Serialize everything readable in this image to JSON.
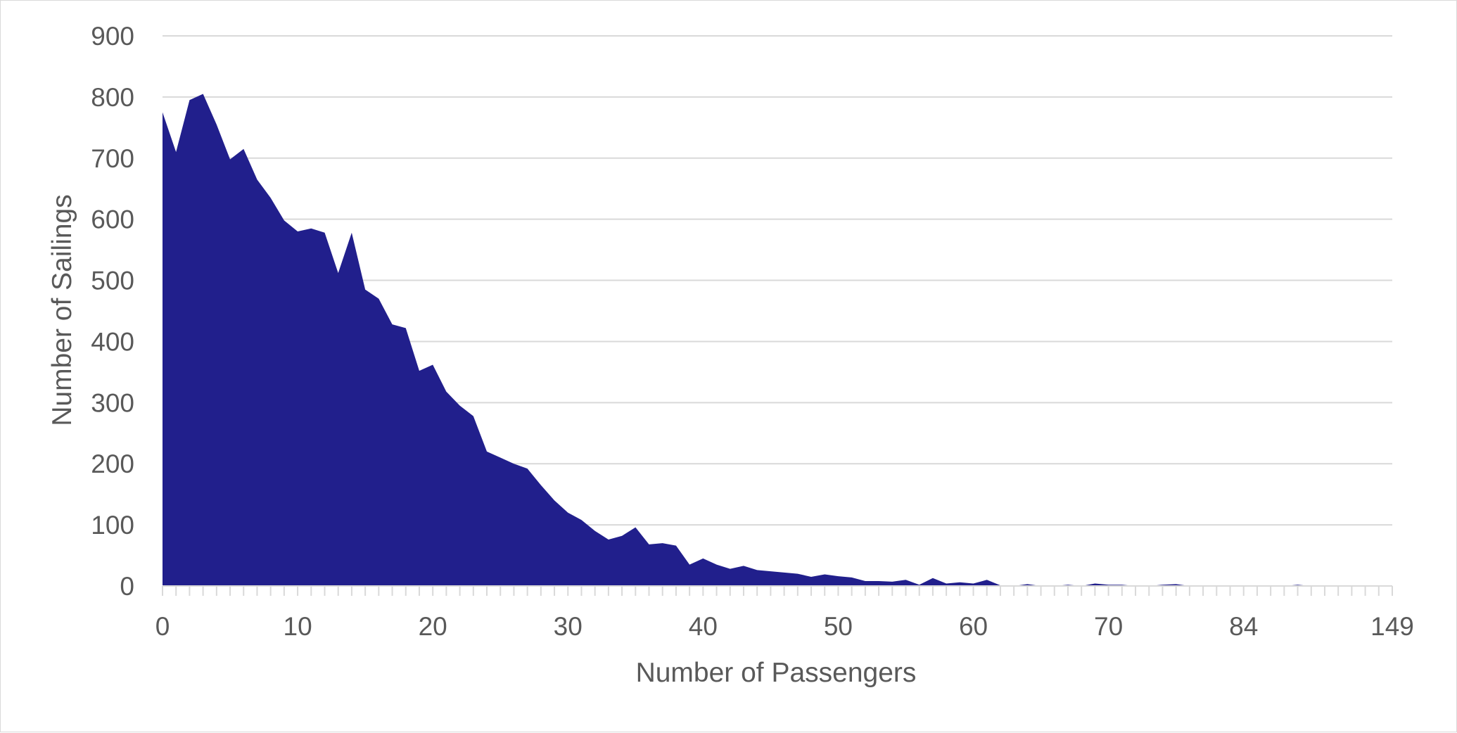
{
  "chart_data": {
    "type": "area",
    "title": "",
    "xlabel": "Number of Passengers",
    "ylabel": "Number of Sailings",
    "ylim": [
      0,
      900
    ],
    "yticks": [
      0,
      100,
      200,
      300,
      400,
      500,
      600,
      700,
      800,
      900
    ],
    "x_tick_labels": [
      {
        "index": 0,
        "label": "0"
      },
      {
        "index": 10,
        "label": "10"
      },
      {
        "index": 20,
        "label": "20"
      },
      {
        "index": 30,
        "label": "30"
      },
      {
        "index": 40,
        "label": "40"
      },
      {
        "index": 50,
        "label": "50"
      },
      {
        "index": 60,
        "label": "60"
      },
      {
        "index": 70,
        "label": "70"
      },
      {
        "index": 80,
        "label": "84"
      },
      {
        "index": 91,
        "label": "149"
      }
    ],
    "grid": true,
    "legend": "none",
    "colors": {
      "fill": "#211f8c",
      "grid": "#d9d9d9",
      "text": "#595959"
    },
    "series": [
      {
        "values": [
          775,
          710,
          795,
          805,
          755,
          698,
          715,
          665,
          635,
          598,
          580,
          585,
          578,
          512,
          578,
          485,
          470,
          428,
          422,
          352,
          362,
          318,
          295,
          278,
          220,
          210,
          200,
          192,
          165,
          140,
          120,
          108,
          90,
          76,
          82,
          96,
          68,
          70,
          66,
          35,
          45,
          35,
          28,
          33,
          26,
          24,
          22,
          20,
          15,
          19,
          16,
          14,
          8,
          8,
          7,
          10,
          2,
          13,
          4,
          6,
          4,
          10,
          1,
          0,
          3,
          0,
          0,
          2,
          0,
          4,
          2,
          2,
          0,
          0,
          2,
          3,
          0,
          0,
          0,
          0,
          0,
          0,
          0,
          0,
          2,
          0,
          0,
          0,
          0,
          0,
          0,
          0
        ]
      }
    ]
  }
}
